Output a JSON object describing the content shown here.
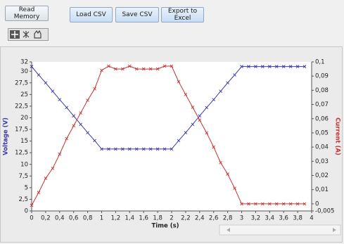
{
  "toolbar": {
    "buttons": [
      "Read Memory",
      "Load CSV",
      "Save CSV",
      "Export to Excel"
    ]
  },
  "chart_data": {
    "type": "line",
    "x_label": "Time (s)",
    "y_label": "Voltage (V)",
    "y2_label": "Current (A)",
    "x": [
      0,
      0.1,
      0.2,
      0.3,
      0.4,
      0.5,
      0.6,
      0.7,
      0.8,
      0.9,
      1.0,
      1.1,
      1.2,
      1.3,
      1.4,
      1.5,
      1.6,
      1.7,
      1.8,
      1.9,
      2.0,
      2.1,
      2.2,
      2.3,
      2.4,
      2.5,
      2.6,
      2.7,
      2.8,
      2.9,
      3.0,
      3.1,
      3.2,
      3.3,
      3.4,
      3.5,
      3.6,
      3.7,
      3.8,
      3.9
    ],
    "series": [
      {
        "name": "Voltage (V)",
        "color": "#3a3aa8",
        "values": [
          31,
          29.2,
          27.5,
          25.7,
          23.9,
          22.2,
          20.4,
          18.6,
          16.8,
          15.1,
          13.3,
          13.3,
          13.3,
          13.3,
          13.3,
          13.3,
          13.3,
          13.3,
          13.3,
          13.3,
          13.3,
          15.1,
          16.8,
          18.6,
          20.4,
          22.2,
          23.9,
          25.7,
          27.5,
          29.2,
          31,
          31,
          31,
          31,
          31,
          31,
          31,
          31,
          31,
          31
        ]
      },
      {
        "name": "Current (A)",
        "color": "#c83232",
        "axis": "y2",
        "values": [
          -0.001,
          0.008,
          0.018,
          0.025,
          0.035,
          0.046,
          0.055,
          0.064,
          0.073,
          0.081,
          0.094,
          0.097,
          0.095,
          0.095,
          0.097,
          0.095,
          0.095,
          0.095,
          0.095,
          0.097,
          0.097,
          0.086,
          0.077,
          0.068,
          0.059,
          0.05,
          0.04,
          0.029,
          0.021,
          0.011,
          0,
          0,
          0,
          0,
          0,
          0,
          0,
          0,
          0,
          0
        ]
      }
    ],
    "xlim": [
      0,
      4
    ],
    "xticks": [
      0,
      {
        "value": 0.2,
        "label": "0,2"
      },
      {
        "value": 0.4,
        "label": "0,4"
      },
      {
        "value": 0.6,
        "label": "0,6"
      },
      {
        "value": 0.8,
        "label": "0,8"
      },
      1,
      {
        "value": 1.2,
        "label": "1,2"
      },
      {
        "value": 1.4,
        "label": "1,4"
      },
      {
        "value": 1.6,
        "label": "1,6"
      },
      {
        "value": 1.8,
        "label": "1,8"
      },
      2,
      {
        "value": 2.2,
        "label": "2,2"
      },
      {
        "value": 2.4,
        "label": "2,4"
      },
      {
        "value": 2.6,
        "label": "2,6"
      },
      {
        "value": 2.8,
        "label": "2,8"
      },
      3,
      {
        "value": 3.2,
        "label": "3,2"
      },
      {
        "value": 3.4,
        "label": "3,4"
      },
      {
        "value": 3.6,
        "label": "3,6"
      },
      {
        "value": 3.8,
        "label": "3,8"
      },
      4
    ],
    "ylim": [
      0,
      32
    ],
    "yticks": [
      0,
      {
        "value": 2.5,
        "label": "2,5"
      },
      5,
      {
        "value": 7.5,
        "label": "7,5"
      },
      10,
      {
        "value": 12.5,
        "label": "12,5"
      },
      15,
      {
        "value": 17.5,
        "label": "17,5"
      },
      20,
      {
        "value": 22.5,
        "label": "22,5"
      },
      25,
      {
        "value": 27.5,
        "label": "27,5"
      },
      30,
      32
    ],
    "y2lim": [
      -0.005,
      0.1
    ],
    "y2ticks": [
      {
        "value": -0.005,
        "label": "-0,005"
      },
      0,
      {
        "value": 0.01,
        "label": "0,01"
      },
      {
        "value": 0.02,
        "label": "0,02"
      },
      {
        "value": 0.03,
        "label": "0,03"
      },
      {
        "value": 0.04,
        "label": "0,04"
      },
      {
        "value": 0.05,
        "label": "0,05"
      },
      {
        "value": 0.06,
        "label": "0,06"
      },
      {
        "value": 0.07,
        "label": "0,07"
      },
      {
        "value": 0.08,
        "label": "0,08"
      },
      {
        "value": 0.09,
        "label": "0,09"
      },
      {
        "value": 0.1,
        "label": "0,1"
      }
    ],
    "grid": false
  }
}
